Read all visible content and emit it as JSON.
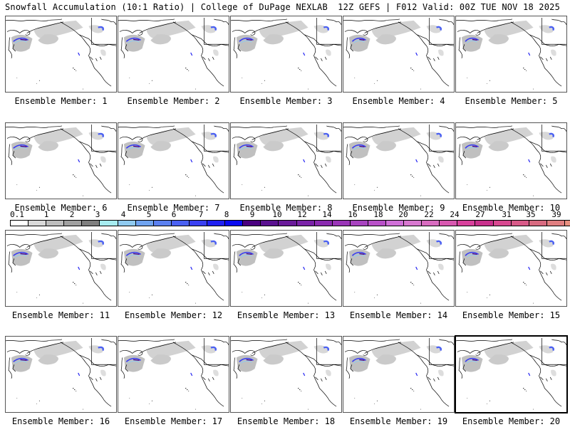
{
  "header": {
    "title_left": "Snowfall Accumulation (10:1 Ratio) | College of DuPage NEXLAB",
    "title_right": "12Z GEFS | F012 Valid: 00Z TUE NOV 18 2025"
  },
  "colorbar": {
    "labels": [
      "0.1",
      "1",
      "2",
      "3",
      "4",
      "5",
      "6",
      "7",
      "8",
      "9",
      "10",
      "12",
      "14",
      "16",
      "18",
      "20",
      "22",
      "24",
      "27",
      "31",
      "35",
      "39"
    ],
    "colors": [
      "#ffffff",
      "#d9d9d9",
      "#bdbdbd",
      "#a0a0a0",
      "#7f7f7f",
      "#a6ecf0",
      "#8fcaf0",
      "#6fa3f0",
      "#5b80f0",
      "#4a60f2",
      "#3a40f2",
      "#2020f2",
      "#0a0af0",
      "#4a0080",
      "#5a1090",
      "#6a1a9a",
      "#7a22a8",
      "#8a2ab0",
      "#9a35b8",
      "#a843c0",
      "#b850c8",
      "#d070d8",
      "#d878d0",
      "#d86cc0",
      "#d858b0",
      "#d8409c",
      "#c8308c",
      "#d84890",
      "#d85a88",
      "#d86a80",
      "#e07e80",
      "#e89080",
      "#eca088",
      "#f0b090",
      "#f2c0a0",
      "#f6d0b0",
      "#f8dcc0",
      "#fbe6d0"
    ]
  },
  "panels": [
    {
      "label": "Ensemble Member: 1"
    },
    {
      "label": "Ensemble Member: 2"
    },
    {
      "label": "Ensemble Member: 3"
    },
    {
      "label": "Ensemble Member: 4"
    },
    {
      "label": "Ensemble Member: 5"
    },
    {
      "label": "Ensemble Member: 6"
    },
    {
      "label": "Ensemble Member: 7"
    },
    {
      "label": "Ensemble Member: 8"
    },
    {
      "label": "Ensemble Member: 9"
    },
    {
      "label": "Ensemble Member: 10"
    },
    {
      "label": "Ensemble Member: 11"
    },
    {
      "label": "Ensemble Member: 12"
    },
    {
      "label": "Ensemble Member: 13"
    },
    {
      "label": "Ensemble Member: 14"
    },
    {
      "label": "Ensemble Member: 15"
    },
    {
      "label": "Ensemble Member: 16"
    },
    {
      "label": "Ensemble Member: 17"
    },
    {
      "label": "Ensemble Member: 18"
    },
    {
      "label": "Ensemble Member: 19"
    },
    {
      "label": "Ensemble Member: 20",
      "selected": true
    }
  ]
}
